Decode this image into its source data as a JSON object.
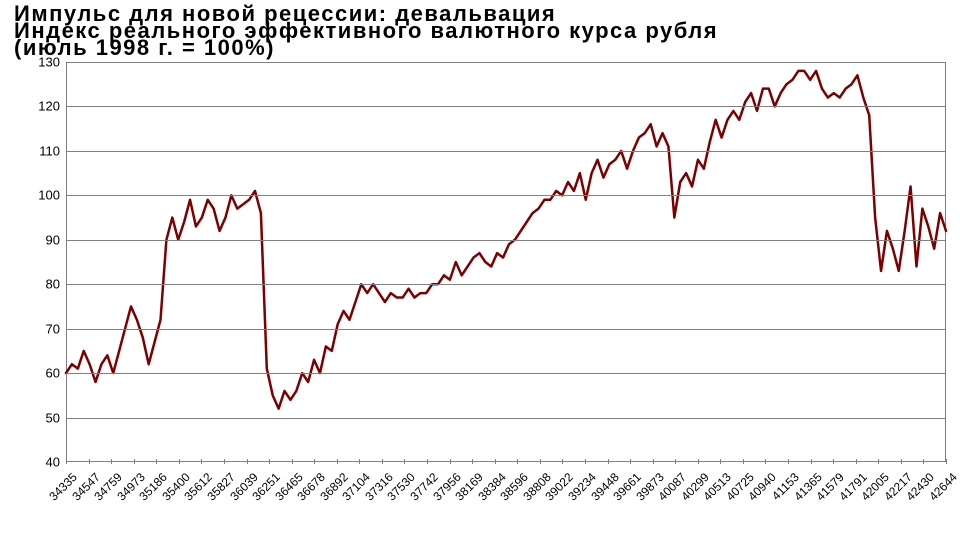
{
  "titles": {
    "line1": "Импульс для новой рецессии: девальвация",
    "line2": "Индекс реального эффективного валютного курса рубля",
    "line3": "(июль 1998 г. = 100%)"
  },
  "chart": {
    "type": "line",
    "background_color": "#ffffff",
    "grid_color": "#808080",
    "border_color": "#808080",
    "line_color": "#7c0000",
    "line_width": 2.5,
    "ylim": [
      40,
      130
    ],
    "ytick_step": 10,
    "y_labels": [
      "40",
      "50",
      "60",
      "70",
      "80",
      "90",
      "100",
      "110",
      "120",
      "130"
    ],
    "y_label_fontsize": 13,
    "x_labels": [
      "34335",
      "34547",
      "34759",
      "34973",
      "35186",
      "35400",
      "35612",
      "35827",
      "36039",
      "36251",
      "36465",
      "36678",
      "36892",
      "37104",
      "37316",
      "37530",
      "37742",
      "37956",
      "38169",
      "38384",
      "38596",
      "38808",
      "39022",
      "39234",
      "39448",
      "39661",
      "39873",
      "40087",
      "40299",
      "40513",
      "40725",
      "40940",
      "41153",
      "41365",
      "41579",
      "41791",
      "42005",
      "42217",
      "42430",
      "42644"
    ],
    "x_label_fontsize": 12,
    "x_label_rotation": -45,
    "values": [
      60,
      62,
      61,
      65,
      62,
      58,
      62,
      64,
      60,
      65,
      70,
      75,
      72,
      68,
      62,
      67,
      72,
      90,
      95,
      90,
      94,
      99,
      93,
      95,
      99,
      97,
      92,
      95,
      100,
      97,
      98,
      99,
      101,
      96,
      61,
      55,
      52,
      56,
      54,
      56,
      60,
      58,
      63,
      60,
      66,
      65,
      71,
      74,
      72,
      76,
      80,
      78,
      80,
      78,
      76,
      78,
      77,
      77,
      79,
      77,
      78,
      78,
      80,
      80,
      82,
      81,
      85,
      82,
      84,
      86,
      87,
      85,
      84,
      87,
      86,
      89,
      90,
      92,
      94,
      96,
      97,
      99,
      99,
      101,
      100,
      103,
      101,
      105,
      99,
      105,
      108,
      104,
      107,
      108,
      110,
      106,
      110,
      113,
      114,
      116,
      111,
      114,
      111,
      95,
      103,
      105,
      102,
      108,
      106,
      112,
      117,
      113,
      117,
      119,
      117,
      121,
      123,
      119,
      124,
      124,
      120,
      123,
      125,
      126,
      128,
      128,
      126,
      128,
      124,
      122,
      123,
      122,
      124,
      125,
      127,
      122,
      118,
      95,
      83,
      92,
      88,
      83,
      92,
      102,
      84,
      97,
      93,
      88,
      96,
      92
    ]
  }
}
